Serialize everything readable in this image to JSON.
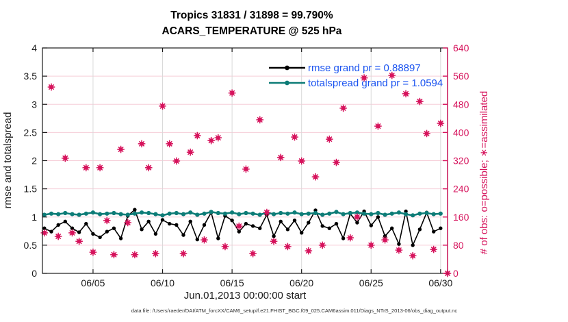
{
  "title": {
    "line1": "Tropics 31831 / 31898 = 99.790%",
    "line2": "ACARS_TEMPERATURE @ 525 hPa"
  },
  "footer": "data file: /Users/raeder/DAI/ATM_forcXX/CAM6_setup/f.e21.FHIST_BGC.f09_025.CAM6assim.011/Diags_NTrS_2013-06/obs_diag_output.nc",
  "colors": {
    "rmse": "#000000",
    "totalspread": "#0d7c77",
    "obs": "#d6135c",
    "legend_text": "#1a53f0",
    "grid_horizontal": "#f6cdd8",
    "grid_vertical": "#d9d9d9",
    "axis_left": "#1a1a1a",
    "axis_right": "#d6135c"
  },
  "chart_data": {
    "type": "line+scatter",
    "title": "Tropics 31831 / 31898 = 99.790%",
    "subtitle": "ACARS_TEMPERATURE @ 525 hPa",
    "xlabel": "Jun.01,2013 00:00:00 start",
    "ylabel_left": "rmse and totalspread",
    "ylabel_right": "# of obs: o=possible; ∗=assimilated",
    "x_unit": "days since Jun 01, 2013 00:00",
    "x_domain": [
      0.36,
      29.5
    ],
    "x_tick_days": [
      4,
      9,
      14,
      19,
      24,
      29
    ],
    "x_tick_labels": [
      "06/05",
      "06/10",
      "06/15",
      "06/20",
      "06/25",
      "06/30"
    ],
    "left_axis": {
      "min": 0,
      "max": 4,
      "ticks": [
        0,
        0.5,
        1,
        1.5,
        2,
        2.5,
        3,
        3.5,
        4
      ],
      "tick_labels": [
        "0",
        "0.5",
        "1",
        "1.5",
        "2",
        "2.5",
        "3",
        "3.5",
        "4"
      ]
    },
    "right_axis": {
      "min": 0,
      "max": 640,
      "ticks": [
        0,
        80,
        160,
        240,
        320,
        400,
        480,
        560,
        640
      ],
      "tick_labels": [
        "0",
        "80",
        "160",
        "240",
        "320",
        "400",
        "480",
        "560",
        "640"
      ]
    },
    "x_days": [
      0.5,
      1,
      1.5,
      2,
      2.5,
      3,
      3.5,
      4,
      4.5,
      5,
      5.5,
      6,
      6.5,
      7,
      7.5,
      8,
      8.5,
      9,
      9.5,
      10,
      10.5,
      11,
      11.5,
      12,
      12.5,
      13,
      13.5,
      14,
      14.5,
      15,
      15.5,
      16,
      16.5,
      17,
      17.5,
      18,
      18.5,
      19,
      19.5,
      20,
      20.5,
      21,
      21.5,
      22,
      22.5,
      23,
      23.5,
      24,
      24.5,
      25,
      25.5,
      26,
      26.5,
      27,
      27.5,
      28,
      28.5,
      29,
      29.5
    ],
    "series": [
      {
        "name": "rmse",
        "axis": "left",
        "grand_prior": "0.88897",
        "values": [
          0.8,
          0.74,
          0.86,
          0.92,
          0.8,
          0.73,
          0.88,
          0.7,
          0.64,
          0.74,
          0.8,
          0.62,
          1.02,
          1.13,
          0.78,
          0.92,
          0.7,
          0.95,
          0.88,
          0.86,
          0.68,
          0.92,
          0.6,
          0.86,
          1.08,
          0.62,
          1.02,
          0.94,
          0.74,
          0.88,
          0.84,
          0.8,
          1.04,
          0.66,
          0.92,
          0.78,
          0.94,
          0.72,
          0.9,
          1.12,
          0.84,
          0.8,
          0.88,
          0.62,
          1.06,
          0.9,
          1.1,
          0.85,
          1.0,
          0.66,
          0.8,
          0.52,
          1.1,
          0.5,
          0.78,
          1.08,
          0.74,
          0.8,
          null
        ]
      },
      {
        "name": "totalspread",
        "axis": "left",
        "grand_prior": "1.0594",
        "values": [
          1.04,
          1.06,
          1.05,
          1.07,
          1.05,
          1.04,
          1.06,
          1.08,
          1.05,
          1.06,
          1.07,
          1.05,
          1.04,
          1.06,
          1.08,
          1.07,
          1.05,
          1.03,
          1.06,
          1.07,
          1.05,
          1.08,
          1.04,
          1.06,
          1.09,
          1.07,
          1.06,
          1.08,
          1.05,
          1.07,
          1.06,
          1.04,
          1.08,
          1.05,
          1.07,
          1.06,
          1.08,
          1.05,
          1.06,
          1.07,
          1.04,
          1.06,
          1.09,
          1.05,
          1.07,
          1.08,
          1.06,
          1.05,
          1.07,
          1.04,
          1.06,
          1.08,
          1.05,
          1.03,
          1.06,
          1.07,
          1.05,
          1.06,
          null
        ]
      },
      {
        "name": "obs_count",
        "axis": "right",
        "marker": "o=possible and ∗=assimilated (overlapping)",
        "values": [
          115,
          529,
          105,
          327,
          115,
          91,
          300,
          60,
          300,
          150,
          53,
          352,
          144,
          53,
          368,
          300,
          56,
          475,
          368,
          319,
          56,
          344,
          391,
          95,
          377,
          385,
          76,
          512,
          134,
          296,
          56,
          436,
          173,
          91,
          329,
          76,
          387,
          319,
          64,
          274,
          80,
          381,
          315,
          469,
          101,
          160,
          555,
          80,
          418,
          95,
          562,
          66,
          510,
          50,
          488,
          397,
          68,
          426,
          0
        ]
      }
    ],
    "legend": {
      "position": "upper right inside plot",
      "entries": [
        {
          "label": "rmse grand pr = 0.88897",
          "series": "rmse"
        },
        {
          "label": "totalspread grand pr = 1.0594",
          "series": "totalspread"
        }
      ]
    },
    "grid": true
  }
}
